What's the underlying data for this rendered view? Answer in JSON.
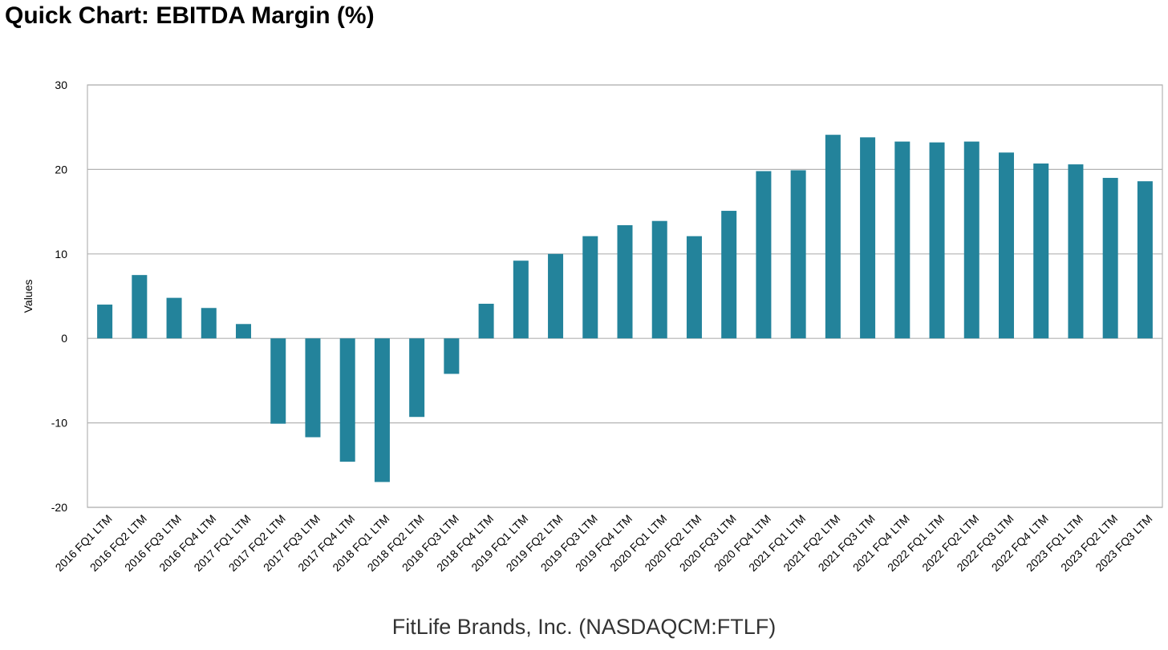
{
  "header": {
    "title": "Quick Chart: EBITDA Margin (%)"
  },
  "footer": {
    "company": "FitLife Brands, Inc. (NASDAQCM:FTLF)"
  },
  "colors": {
    "bar": "#23839b",
    "grid": "#b3b3b3",
    "frame": "#b3b3b3"
  },
  "chart_data": {
    "type": "bar",
    "title": "Quick Chart: EBITDA Margin (%)",
    "xlabel": "",
    "ylabel": "Values",
    "ylim": [
      -20,
      30
    ],
    "yticks": [
      30,
      20,
      10,
      0,
      -10,
      -20
    ],
    "grid": true,
    "legend": "none",
    "categories": [
      "2016 FQ1 LTM",
      "2016 FQ2 LTM",
      "2016 FQ3 LTM",
      "2016 FQ4 LTM",
      "2017 FQ1 LTM",
      "2017 FQ2 LTM",
      "2017 FQ3 LTM",
      "2017 FQ4 LTM",
      "2018 FQ1 LTM",
      "2018 FQ2 LTM",
      "2018 FQ3 LTM",
      "2018 FQ4 LTM",
      "2019 FQ1 LTM",
      "2019 FQ2 LTM",
      "2019 FQ3 LTM",
      "2019 FQ4 LTM",
      "2020 FQ1 LTM",
      "2020 FQ2 LTM",
      "2020 FQ3 LTM",
      "2020 FQ4 LTM",
      "2021 FQ1 LTM",
      "2021 FQ2 LTM",
      "2021 FQ3 LTM",
      "2021 FQ4 LTM",
      "2022 FQ1 LTM",
      "2022 FQ2 LTM",
      "2022 FQ3 LTM",
      "2022 FQ4 LTM",
      "2023 FQ1 LTM",
      "2023 FQ2 LTM",
      "2023 FQ3 LTM"
    ],
    "values": [
      4.0,
      7.5,
      4.8,
      3.6,
      1.7,
      -10.1,
      -11.7,
      -14.6,
      -17.0,
      -9.3,
      -4.2,
      4.1,
      9.2,
      10.0,
      12.1,
      13.4,
      13.9,
      12.1,
      15.1,
      19.8,
      19.9,
      24.1,
      23.8,
      23.3,
      23.2,
      23.3,
      22.0,
      20.7,
      20.6,
      19.0,
      18.6
    ]
  }
}
